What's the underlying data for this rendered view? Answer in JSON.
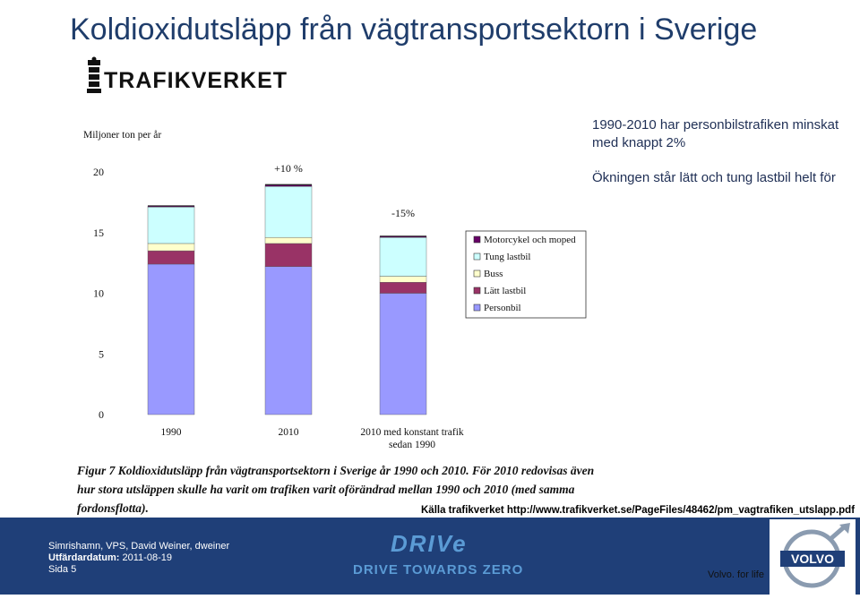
{
  "slide": {
    "title": "Koldioxidutsläpp från vägtransportsektorn i Sverige",
    "notes": [
      "1990-2010 har personbilstrafiken minskat med knappt 2%",
      "Ökningen står lätt och tung lastbil helt för"
    ],
    "source": "Källa trafikverket http://www.trafikverket.se/PageFiles/48462/pm_vagtrafiken_utslapp.pdf"
  },
  "figure": {
    "logo_text": "TRAFIKVERKET",
    "caption": "Figur 7 Koldioxidutsläpp från vägtransportsektorn i Sverige år 1990 och 2010. För 2010 redovisas även hur stora utsläppen skulle ha varit om trafiken varit oförändrad mellan 1990 och 2010 (med samma fordonsflotta)."
  },
  "chart_data": {
    "type": "bar",
    "stacked": true,
    "ylabel": "Miljoner ton per år",
    "ylim": [
      0,
      20
    ],
    "yticks": [
      0,
      5,
      10,
      15,
      20
    ],
    "categories": [
      "1990",
      "2010",
      "2010 med konstant trafik sedan 1990"
    ],
    "category_lines": [
      [
        "1990"
      ],
      [
        "2010"
      ],
      [
        "2010 med konstant trafik",
        "sedan 1990"
      ]
    ],
    "annotations": [
      "",
      "+10 %",
      "-15%"
    ],
    "series": [
      {
        "name": "Personbil",
        "color": "#9999ff",
        "values": [
          12.4,
          12.2,
          10.0
        ]
      },
      {
        "name": "Lätt lastbil",
        "color": "#993366",
        "values": [
          1.1,
          1.9,
          0.9
        ]
      },
      {
        "name": "Buss",
        "color": "#ffffcc",
        "values": [
          0.6,
          0.5,
          0.5
        ]
      },
      {
        "name": "Tung lastbil",
        "color": "#ccffff",
        "values": [
          3.0,
          4.2,
          3.2
        ]
      },
      {
        "name": "Motorcykel och moped",
        "color": "#660066",
        "values": [
          0.1,
          0.15,
          0.1
        ]
      }
    ],
    "legend_position": "right",
    "grid": false
  },
  "footer": {
    "author_line": "Simrishamn, VPS, David Weiner, dweiner",
    "date_label": "Utfärdardatum:",
    "date_value": "2011-08-19",
    "page": "Sida 5",
    "drive_logo": "DRIVe",
    "tagline": "DRIVE TOWARDS ZERO",
    "brand": "VOLVO",
    "slogan": "Volvo. for life"
  }
}
